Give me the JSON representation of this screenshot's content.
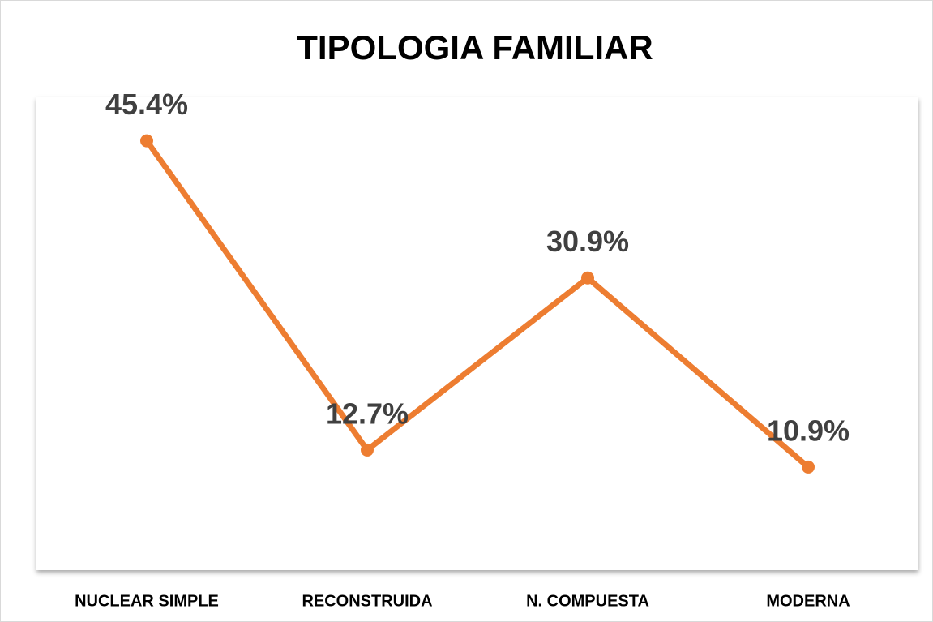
{
  "chart_data": {
    "type": "line",
    "title": "TIPOLOGIA FAMILIAR",
    "categories": [
      "NUCLEAR SIMPLE",
      "RECONSTRUIDA",
      "N. COMPUESTA",
      "MODERNA"
    ],
    "values": [
      45.4,
      12.7,
      30.9,
      10.9
    ],
    "value_labels": [
      "45.4%",
      "12.7%",
      "30.9%",
      "10.9%"
    ],
    "color": "#ed7d31",
    "ylim": [
      0,
      50
    ]
  }
}
